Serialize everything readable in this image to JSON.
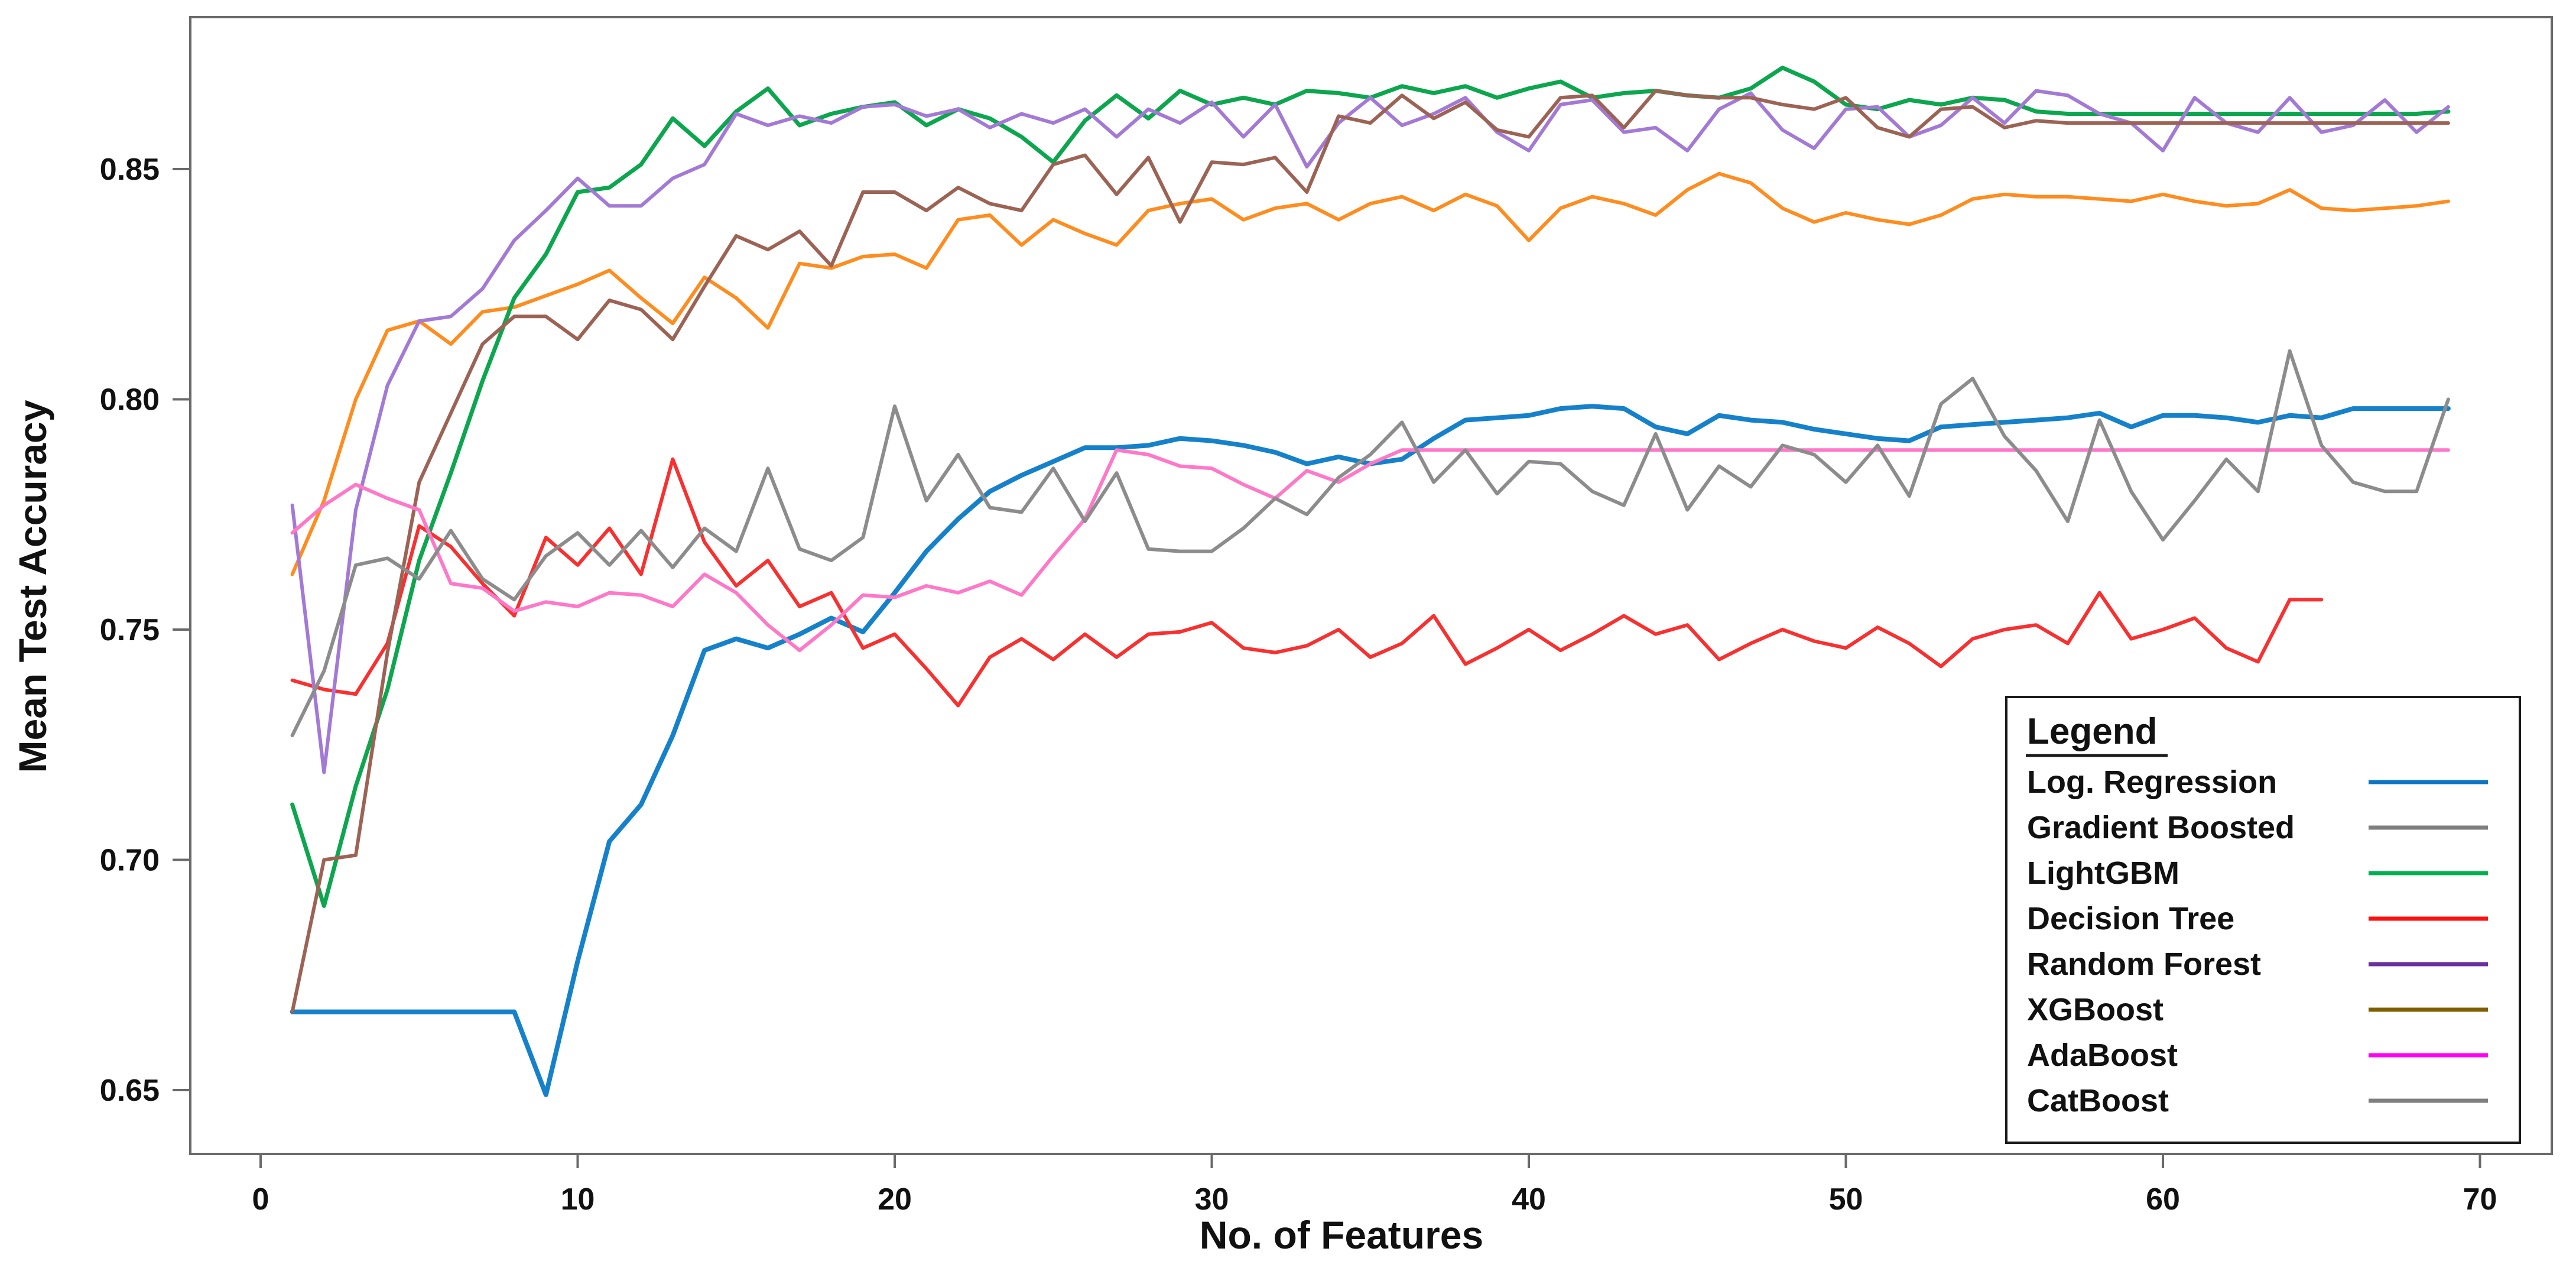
{
  "chart_data": {
    "type": "line",
    "title": "",
    "xlabel": "No. of Features",
    "ylabel": "Mean Test Accuracy",
    "xlim": [
      -2,
      72
    ],
    "ylim": [
      0.636,
      0.883
    ],
    "x_ticks": [
      0,
      10,
      20,
      30,
      40,
      50,
      60,
      70
    ],
    "y_ticks": [
      "0.85",
      "0.80",
      "0.75",
      "0.70",
      "0.65"
    ],
    "grid": false,
    "legend_position": "lower right",
    "series": [
      {
        "name": "Log. Regression",
        "color": "#1581cb",
        "stroke_width": 8,
        "x_start": 1,
        "x_step": 1,
        "values": [
          0.667,
          0.667,
          0.667,
          0.667,
          0.667,
          0.667,
          0.667,
          0.667,
          0.649,
          0.678,
          0.704,
          0.712,
          0.727,
          0.7455,
          0.748,
          0.746,
          0.749,
          0.7525,
          0.7495,
          0.758,
          0.767,
          0.774,
          0.78,
          0.7835,
          0.7865,
          0.7895,
          0.7895,
          0.79,
          0.7915,
          0.791,
          0.79,
          0.7885,
          0.786,
          0.7875,
          0.786,
          0.787,
          0.7915,
          0.7955,
          0.796,
          0.7965,
          0.798,
          0.7985,
          0.798,
          0.794,
          0.7925,
          0.7965,
          0.7955,
          0.795,
          0.7935,
          0.7925,
          0.7915,
          0.791,
          0.794,
          0.7945,
          0.795,
          0.7955,
          0.796,
          0.797,
          0.794,
          0.7965,
          0.7965,
          0.796,
          0.795,
          0.7965,
          0.796,
          0.798,
          0.798,
          0.798,
          0.798
        ]
      },
      {
        "name": "Gradient Boosted",
        "color": "#ff8c1e",
        "stroke_width": 6,
        "x_start": 1,
        "x_step": 1,
        "values": [
          0.762,
          0.778,
          0.8,
          0.815,
          0.817,
          0.812,
          0.819,
          0.82,
          0.8225,
          0.825,
          0.828,
          0.822,
          0.8165,
          0.8265,
          0.822,
          0.8155,
          0.8295,
          0.8285,
          0.831,
          0.8315,
          0.8285,
          0.839,
          0.84,
          0.8335,
          0.839,
          0.836,
          0.8335,
          0.841,
          0.8425,
          0.8435,
          0.839,
          0.8415,
          0.8425,
          0.839,
          0.8425,
          0.844,
          0.841,
          0.8445,
          0.842,
          0.8345,
          0.8415,
          0.844,
          0.8425,
          0.84,
          0.8455,
          0.849,
          0.847,
          0.8415,
          0.8385,
          0.8405,
          0.839,
          0.838,
          0.84,
          0.8435,
          0.8445,
          0.844,
          0.844,
          0.8435,
          0.843,
          0.8445,
          0.843,
          0.842,
          0.8425,
          0.8455,
          0.8415,
          0.841,
          0.8415,
          0.842,
          0.843
        ]
      },
      {
        "name": "LightGBM",
        "color": "#0ca64e",
        "stroke_width": 7,
        "x_start": 1,
        "x_step": 1,
        "values": [
          0.712,
          0.69,
          0.716,
          0.737,
          0.765,
          0.784,
          0.804,
          0.822,
          0.8315,
          0.845,
          0.846,
          0.851,
          0.861,
          0.855,
          0.8625,
          0.8675,
          0.8595,
          0.862,
          0.8635,
          0.8645,
          0.8595,
          0.863,
          0.861,
          0.857,
          0.8515,
          0.8605,
          0.866,
          0.861,
          0.867,
          0.864,
          0.8655,
          0.864,
          0.867,
          0.8665,
          0.8655,
          0.868,
          0.8665,
          0.868,
          0.8655,
          0.8675,
          0.869,
          0.8655,
          0.8665,
          0.867,
          0.866,
          0.8655,
          0.8675,
          0.872,
          0.869,
          0.864,
          0.863,
          0.865,
          0.864,
          0.8655,
          0.865,
          0.8625,
          0.862,
          0.862,
          0.862,
          0.862,
          0.862,
          0.862,
          0.862,
          0.862,
          0.862,
          0.862,
          0.862,
          0.862,
          0.8625
        ]
      },
      {
        "name": "Decision Tree",
        "color": "#f83030",
        "stroke_width": 6,
        "x_start": 1,
        "x_step": 1,
        "values": [
          0.739,
          0.737,
          0.736,
          0.747,
          0.7725,
          0.768,
          0.76,
          0.753,
          0.77,
          0.764,
          0.772,
          0.762,
          0.787,
          0.769,
          0.7595,
          0.765,
          0.755,
          0.758,
          0.746,
          0.749,
          0.7415,
          0.7335,
          0.744,
          0.748,
          0.7435,
          0.749,
          0.744,
          0.749,
          0.7495,
          0.7515,
          0.746,
          0.745,
          0.7465,
          0.75,
          0.744,
          0.747,
          0.753,
          0.7425,
          0.746,
          0.75,
          0.7455,
          0.749,
          0.753,
          0.749,
          0.751,
          0.7435,
          0.747,
          0.75,
          0.7475,
          0.746,
          0.7505,
          0.747,
          0.742,
          0.748,
          0.75,
          0.751,
          0.747,
          0.758,
          0.748,
          0.75,
          0.7525,
          0.746,
          0.743,
          0.7565,
          0.7565
        ]
      },
      {
        "name": "Random Forest",
        "color": "#a379d6",
        "stroke_width": 6,
        "x_start": 1,
        "x_step": 1,
        "values": [
          0.777,
          0.719,
          0.776,
          0.803,
          0.817,
          0.818,
          0.824,
          0.8345,
          0.841,
          0.848,
          0.842,
          0.842,
          0.848,
          0.851,
          0.862,
          0.8595,
          0.8615,
          0.86,
          0.8635,
          0.864,
          0.8615,
          0.863,
          0.859,
          0.862,
          0.86,
          0.863,
          0.857,
          0.863,
          0.86,
          0.8645,
          0.857,
          0.864,
          0.8505,
          0.86,
          0.8655,
          0.8595,
          0.862,
          0.8655,
          0.858,
          0.854,
          0.864,
          0.865,
          0.858,
          0.859,
          0.854,
          0.863,
          0.8665,
          0.8585,
          0.8545,
          0.863,
          0.8635,
          0.857,
          0.8595,
          0.8655,
          0.86,
          0.867,
          0.866,
          0.862,
          0.86,
          0.854,
          0.8655,
          0.86,
          0.858,
          0.8655,
          0.858,
          0.8595,
          0.865,
          0.858,
          0.8635
        ]
      },
      {
        "name": "XGBoost",
        "color": "#9c6355",
        "stroke_width": 6,
        "x_start": 1,
        "x_step": 1,
        "values": [
          0.667,
          0.7,
          0.701,
          0.745,
          0.782,
          0.797,
          0.812,
          0.818,
          0.818,
          0.813,
          0.8215,
          0.8195,
          0.813,
          0.8245,
          0.8355,
          0.8325,
          0.8365,
          0.829,
          0.845,
          0.845,
          0.841,
          0.846,
          0.8425,
          0.841,
          0.851,
          0.853,
          0.8445,
          0.8525,
          0.8385,
          0.8515,
          0.851,
          0.8525,
          0.845,
          0.8615,
          0.86,
          0.866,
          0.861,
          0.8645,
          0.8585,
          0.857,
          0.8655,
          0.866,
          0.859,
          0.867,
          0.866,
          0.8655,
          0.8655,
          0.864,
          0.863,
          0.8655,
          0.859,
          0.857,
          0.863,
          0.8635,
          0.859,
          0.8605,
          0.86,
          0.86,
          0.86,
          0.86,
          0.86,
          0.86,
          0.86,
          0.86,
          0.86,
          0.86,
          0.86,
          0.86,
          0.86
        ]
      },
      {
        "name": "AdaBoost",
        "color": "#ff78c8",
        "stroke_width": 6,
        "x_start": 1,
        "x_step": 1,
        "values": [
          0.771,
          0.777,
          0.7815,
          0.7785,
          0.776,
          0.76,
          0.759,
          0.754,
          0.756,
          0.755,
          0.758,
          0.7575,
          0.755,
          0.762,
          0.758,
          0.751,
          0.7455,
          0.751,
          0.7575,
          0.757,
          0.7595,
          0.758,
          0.7605,
          0.7575,
          0.766,
          0.774,
          0.789,
          0.788,
          0.7855,
          0.785,
          0.7815,
          0.7785,
          0.7845,
          0.782,
          0.786,
          0.789,
          0.789,
          0.789,
          0.789,
          0.789,
          0.789,
          0.789,
          0.789,
          0.789,
          0.789,
          0.789,
          0.789,
          0.789,
          0.789,
          0.789,
          0.789,
          0.789,
          0.789,
          0.789,
          0.789,
          0.789,
          0.789,
          0.789,
          0.789,
          0.789,
          0.789,
          0.789,
          0.789,
          0.789,
          0.789,
          0.789,
          0.789,
          0.789,
          0.789
        ]
      },
      {
        "name": "CatBoost",
        "color": "#8c8c8c",
        "stroke_width": 6,
        "x_start": 1,
        "x_step": 1,
        "values": [
          0.727,
          0.741,
          0.764,
          0.7655,
          0.761,
          0.7715,
          0.761,
          0.7565,
          0.766,
          0.771,
          0.764,
          0.7715,
          0.7635,
          0.772,
          0.767,
          0.785,
          0.7675,
          0.765,
          0.77,
          0.7985,
          0.778,
          0.788,
          0.7765,
          0.7755,
          0.785,
          0.7735,
          0.784,
          0.7675,
          0.767,
          0.767,
          0.772,
          0.7785,
          0.775,
          0.783,
          0.788,
          0.795,
          0.782,
          0.789,
          0.7795,
          0.7865,
          0.786,
          0.78,
          0.777,
          0.7925,
          0.776,
          0.7855,
          0.781,
          0.79,
          0.788,
          0.782,
          0.79,
          0.779,
          0.799,
          0.8045,
          0.792,
          0.7845,
          0.7735,
          0.7955,
          0.78,
          0.7695,
          0.778,
          0.787,
          0.78,
          0.8105,
          0.79,
          0.782,
          0.78,
          0.78,
          0.8
        ]
      }
    ]
  },
  "legend": {
    "title": "Legend",
    "items": [
      {
        "label": "Log. Regression",
        "text_color": "#0d8bd8",
        "swatch_color": "#0d76c4"
      },
      {
        "label": "Gradient Boosted",
        "text_color": "#e2690f",
        "swatch_color": "#7f7f7f"
      },
      {
        "label": "LightGBM",
        "text_color": "#00ae4d",
        "swatch_color": "#00b050"
      },
      {
        "label": "Decision Tree",
        "text_color": "#ff2a2a",
        "swatch_color": "#ff1010"
      },
      {
        "label": "Random Forest",
        "text_color": "#8150c0",
        "swatch_color": "#6a2fa0"
      },
      {
        "label": "XGBoost",
        "text_color": "#7f6000",
        "swatch_color": "#7f6000"
      },
      {
        "label": "AdaBoost",
        "text_color": "#ff00f5",
        "swatch_color": "#ff00f5"
      },
      {
        "label": "CatBoost",
        "text_color": "#a8a8a8",
        "swatch_color": "#7f7f7f"
      }
    ]
  }
}
